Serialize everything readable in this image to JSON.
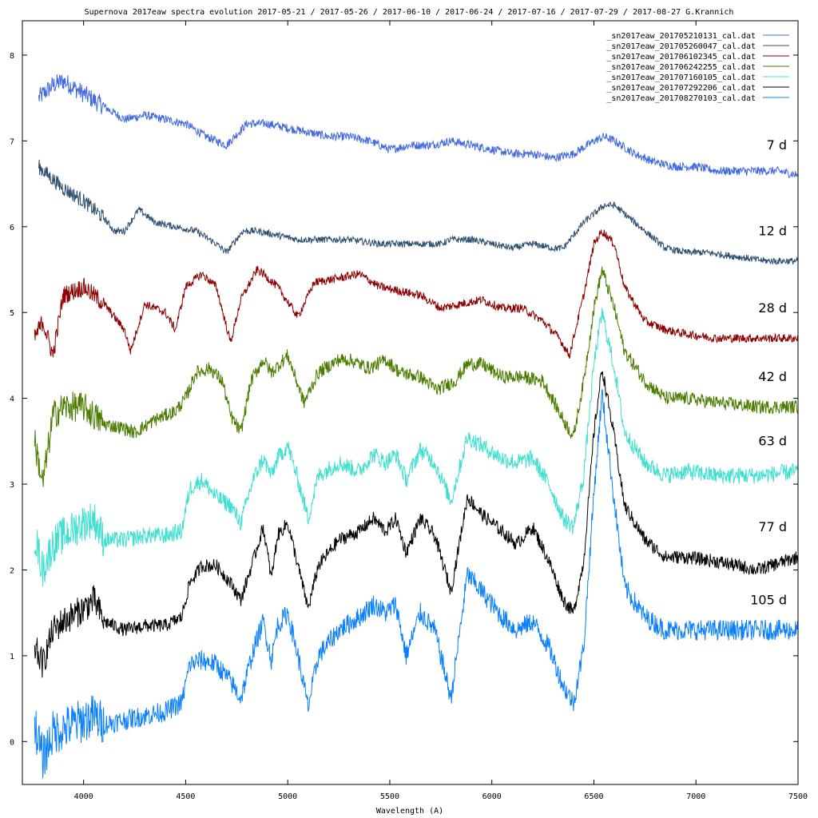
{
  "chart_data": {
    "type": "line",
    "title": "Supernova 2017eaw spectra evolution  2017-05-21 / 2017-05-26 / 2017-06-10 / 2017-06-24 / 2017-07-16 / 2017-07-29 / 2017-08-27   G.Krannich",
    "xlabel": "Wavelength (A)",
    "ylabel": "",
    "xlim": [
      3700,
      7500
    ],
    "ylim": [
      -0.5,
      8.4
    ],
    "grid": false,
    "legend_position": "top-right",
    "x_ticks": [
      4000,
      4500,
      5000,
      5500,
      6000,
      6500,
      7000,
      7500
    ],
    "x_tick_labels": [
      "4000",
      "4500",
      "5000",
      "5500",
      "6000",
      "6500",
      "7000",
      "7500"
    ],
    "y_ticks": [
      0,
      1,
      2,
      3,
      4,
      5,
      6,
      7,
      8
    ],
    "y_tick_labels": [
      "0",
      "1",
      "2",
      "3",
      "4",
      "5",
      "6",
      "7",
      "8"
    ],
    "series": [
      {
        "name": "_sn2017eaw_201705210131_cal.dat",
        "label": "7 d",
        "color": "#4169e1",
        "noise": 0.05,
        "x": [
          3780,
          3850,
          3900,
          4000,
          4100,
          4200,
          4300,
          4400,
          4500,
          4600,
          4700,
          4800,
          4900,
          5000,
          5100,
          5200,
          5300,
          5400,
          5500,
          5600,
          5700,
          5800,
          5900,
          6000,
          6100,
          6200,
          6300,
          6400,
          6500,
          6550,
          6600,
          6700,
          6800,
          6900,
          7000,
          7100,
          7200,
          7300,
          7400,
          7500
        ],
        "y": [
          7.5,
          7.65,
          7.7,
          7.55,
          7.4,
          7.25,
          7.3,
          7.25,
          7.2,
          7.05,
          6.95,
          7.2,
          7.2,
          7.15,
          7.1,
          7.05,
          7.05,
          7.0,
          6.9,
          6.95,
          6.95,
          7.0,
          6.95,
          6.9,
          6.85,
          6.85,
          6.8,
          6.85,
          7.0,
          7.05,
          7.0,
          6.85,
          6.75,
          6.7,
          6.7,
          6.65,
          6.65,
          6.65,
          6.65,
          6.6
        ]
      },
      {
        "name": "_sn2017eaw_201705260047_cal.dat",
        "label": "12 d",
        "color": "#2f4f70",
        "noise": 0.04,
        "x": [
          3780,
          3850,
          3900,
          4000,
          4100,
          4150,
          4200,
          4270,
          4350,
          4450,
          4550,
          4650,
          4700,
          4780,
          4850,
          4950,
          5050,
          5150,
          5300,
          5450,
          5550,
          5650,
          5750,
          5800,
          5900,
          6000,
          6100,
          6200,
          6300,
          6350,
          6450,
          6550,
          6600,
          6650,
          6750,
          6850,
          6950,
          7050,
          7200,
          7350,
          7500
        ],
        "y": [
          6.7,
          6.55,
          6.45,
          6.3,
          6.1,
          5.95,
          5.95,
          6.2,
          6.05,
          6.0,
          5.95,
          5.8,
          5.7,
          5.95,
          5.95,
          5.9,
          5.85,
          5.85,
          5.85,
          5.8,
          5.8,
          5.8,
          5.8,
          5.85,
          5.85,
          5.8,
          5.75,
          5.8,
          5.75,
          5.75,
          6.05,
          6.25,
          6.25,
          6.15,
          5.95,
          5.75,
          5.7,
          5.7,
          5.65,
          5.6,
          5.6
        ]
      },
      {
        "name": "_sn2017eaw_201706102345_cal.dat",
        "label": "28 d",
        "color": "#8b0000",
        "noise": 0.05,
        "x": [
          3760,
          3800,
          3850,
          3900,
          4000,
          4100,
          4200,
          4230,
          4300,
          4400,
          4450,
          4500,
          4580,
          4650,
          4720,
          4770,
          4850,
          4880,
          4950,
          5050,
          5130,
          5250,
          5350,
          5450,
          5550,
          5650,
          5750,
          5850,
          5950,
          6050,
          6150,
          6250,
          6330,
          6380,
          6450,
          6500,
          6540,
          6600,
          6650,
          6750,
          6850,
          6950,
          7100,
          7300,
          7500
        ],
        "y": [
          4.7,
          4.9,
          4.5,
          5.2,
          5.3,
          5.1,
          4.8,
          4.55,
          5.1,
          5.0,
          4.8,
          5.3,
          5.45,
          5.3,
          4.65,
          5.15,
          5.5,
          5.45,
          5.3,
          4.95,
          5.35,
          5.4,
          5.45,
          5.3,
          5.25,
          5.2,
          5.05,
          5.1,
          5.15,
          5.05,
          5.05,
          4.9,
          4.7,
          4.5,
          5.2,
          5.8,
          5.95,
          5.8,
          5.3,
          4.9,
          4.8,
          4.75,
          4.7,
          4.7,
          4.7
        ]
      },
      {
        "name": "_sn2017eaw_201706242255_cal.dat",
        "label": "42 d",
        "color": "#4b7c00",
        "noise": 0.08,
        "x": [
          3760,
          3800,
          3850,
          3900,
          4000,
          4100,
          4200,
          4250,
          4350,
          4450,
          4500,
          4550,
          4620,
          4680,
          4720,
          4770,
          4820,
          4880,
          4920,
          4960,
          5000,
          5080,
          5150,
          5250,
          5300,
          5400,
          5480,
          5550,
          5650,
          5730,
          5820,
          5880,
          5950,
          6050,
          6150,
          6250,
          6350,
          6400,
          6450,
          6500,
          6540,
          6600,
          6650,
          6750,
          6850,
          6950,
          7100,
          7300,
          7500
        ],
        "y": [
          3.5,
          3.0,
          3.8,
          3.9,
          3.9,
          3.7,
          3.65,
          3.6,
          3.75,
          3.85,
          4.0,
          4.3,
          4.35,
          4.2,
          3.8,
          3.6,
          4.2,
          4.45,
          4.3,
          4.4,
          4.5,
          3.95,
          4.3,
          4.45,
          4.45,
          4.35,
          4.45,
          4.3,
          4.25,
          4.1,
          4.2,
          4.4,
          4.4,
          4.25,
          4.25,
          4.2,
          3.75,
          3.55,
          4.2,
          5.05,
          5.5,
          5.05,
          4.55,
          4.2,
          4.0,
          4.0,
          3.95,
          3.9,
          3.9
        ]
      },
      {
        "name": "_sn2017eaw_201707160105_cal.dat",
        "label": "63 d",
        "color": "#40e0d0",
        "noise": 0.1,
        "x": [
          3760,
          3800,
          3850,
          3900,
          4000,
          4050,
          4100,
          4200,
          4300,
          4400,
          4480,
          4520,
          4580,
          4650,
          4720,
          4770,
          4830,
          4880,
          4920,
          4950,
          5000,
          5050,
          5100,
          5150,
          5250,
          5350,
          5420,
          5480,
          5530,
          5580,
          5650,
          5720,
          5800,
          5880,
          5950,
          6050,
          6120,
          6200,
          6280,
          6350,
          6400,
          6450,
          6500,
          6540,
          6600,
          6650,
          6750,
          6850,
          6950,
          7100,
          7300,
          7500
        ],
        "y": [
          2.4,
          2.0,
          2.3,
          2.4,
          2.55,
          2.6,
          2.35,
          2.35,
          2.4,
          2.4,
          2.45,
          2.95,
          3.05,
          2.85,
          2.75,
          2.55,
          3.05,
          3.3,
          3.1,
          3.3,
          3.45,
          3.05,
          2.6,
          3.1,
          3.25,
          3.15,
          3.35,
          3.25,
          3.35,
          3.05,
          3.4,
          3.25,
          2.8,
          3.55,
          3.45,
          3.3,
          3.25,
          3.3,
          3.0,
          2.6,
          2.5,
          3.1,
          4.4,
          5.0,
          4.35,
          3.6,
          3.25,
          3.1,
          3.15,
          3.1,
          3.1,
          3.15
        ]
      },
      {
        "name": "_sn2017eaw_201707292206_cal.dat",
        "label": "77 d",
        "color": "#000000",
        "noise": 0.08,
        "x": [
          3760,
          3800,
          3850,
          3900,
          4000,
          4050,
          4100,
          4200,
          4300,
          4400,
          4480,
          4520,
          4580,
          4650,
          4720,
          4770,
          4830,
          4880,
          4920,
          4950,
          5000,
          5050,
          5100,
          5150,
          5250,
          5350,
          5420,
          5480,
          5530,
          5580,
          5650,
          5720,
          5800,
          5880,
          5950,
          6050,
          6120,
          6200,
          6280,
          6350,
          6400,
          6450,
          6500,
          6540,
          6600,
          6650,
          6750,
          6850,
          6950,
          7100,
          7300,
          7500
        ],
        "y": [
          1.1,
          0.9,
          1.3,
          1.4,
          1.55,
          1.65,
          1.4,
          1.3,
          1.35,
          1.35,
          1.45,
          1.85,
          2.05,
          2.05,
          1.85,
          1.65,
          2.1,
          2.5,
          1.9,
          2.4,
          2.55,
          2.05,
          1.55,
          2.05,
          2.35,
          2.45,
          2.6,
          2.45,
          2.6,
          2.2,
          2.6,
          2.4,
          1.75,
          2.85,
          2.65,
          2.45,
          2.3,
          2.5,
          2.1,
          1.65,
          1.5,
          2.1,
          3.6,
          4.35,
          3.55,
          2.75,
          2.35,
          2.15,
          2.15,
          2.1,
          2.0,
          2.15
        ]
      },
      {
        "name": "_sn2017eaw_201708270103_cal.dat",
        "label": "105 d",
        "color": "#0a7fff",
        "noise": 0.12,
        "x": [
          3760,
          3800,
          3850,
          3900,
          4000,
          4050,
          4100,
          4200,
          4300,
          4400,
          4480,
          4520,
          4580,
          4650,
          4720,
          4770,
          4830,
          4880,
          4920,
          4950,
          5000,
          5050,
          5100,
          5150,
          5250,
          5350,
          5420,
          5480,
          5530,
          5580,
          5650,
          5720,
          5800,
          5880,
          5950,
          6050,
          6120,
          6200,
          6280,
          6350,
          6400,
          6450,
          6500,
          6540,
          6600,
          6650,
          6750,
          6850,
          6950,
          7100,
          7300,
          7500
        ],
        "y": [
          0.2,
          -0.2,
          0.1,
          0.15,
          0.25,
          0.3,
          0.2,
          0.25,
          0.3,
          0.35,
          0.45,
          0.9,
          0.95,
          0.9,
          0.7,
          0.5,
          1.05,
          1.4,
          0.95,
          1.35,
          1.5,
          1.0,
          0.4,
          1.0,
          1.3,
          1.45,
          1.6,
          1.5,
          1.6,
          1.0,
          1.5,
          1.3,
          0.5,
          1.95,
          1.75,
          1.45,
          1.3,
          1.4,
          1.1,
          0.65,
          0.45,
          1.1,
          2.9,
          4.05,
          2.8,
          1.8,
          1.45,
          1.3,
          1.3,
          1.3,
          1.3,
          1.3
        ]
      }
    ]
  }
}
